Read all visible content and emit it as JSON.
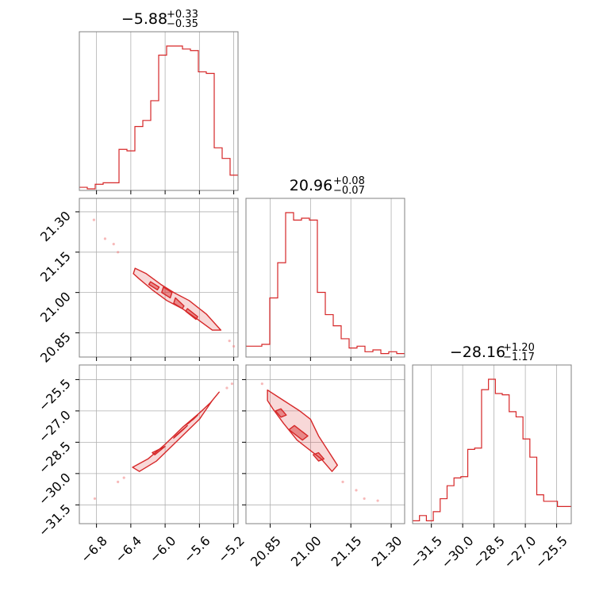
{
  "chart_data": {
    "type": "corner",
    "colors": {
      "line": "#d62728",
      "fill": "#f4c2c2",
      "grid": "#b0b0b0",
      "frame": "#808080"
    },
    "params": [
      {
        "name": "p0",
        "range": [
          -7.0,
          -5.15
        ],
        "ticks": [
          -6.8,
          -6.4,
          -6.0,
          -5.6,
          -5.2
        ],
        "tick_labels": [
          "−6.8",
          "−6.4",
          "−6.0",
          "−5.6",
          "−5.2"
        ],
        "title": {
          "median": "−5.88",
          "plus": "+0.33",
          "minus": "−0.35"
        }
      },
      {
        "name": "p1",
        "range": [
          20.76,
          21.35
        ],
        "ticks": [
          20.85,
          21.0,
          21.15,
          21.3
        ],
        "tick_labels": [
          "20.85",
          "21.00",
          "21.15",
          "21.30"
        ],
        "title": {
          "median": "20.96",
          "plus": "+0.08",
          "minus": "−0.07"
        }
      },
      {
        "name": "p2",
        "range": [
          -32.4,
          -24.8
        ],
        "ticks": [
          -31.5,
          -30.0,
          -28.5,
          -27.0,
          -25.5
        ],
        "tick_labels": [
          "−31.5",
          "−30.0",
          "−28.5",
          "−27.0",
          "−25.5"
        ],
        "title": {
          "median": "−28.16",
          "plus": "+1.20",
          "minus": "−1.17"
        }
      }
    ],
    "histograms": [
      {
        "param": 0,
        "counts": [
          1,
          0,
          3,
          4,
          4,
          26,
          25,
          41,
          45,
          58,
          88,
          94,
          94,
          92,
          91,
          77,
          76,
          27,
          20,
          9
        ]
      },
      {
        "param": 1,
        "counts": [
          5,
          5,
          6,
          31,
          50,
          77,
          73,
          74,
          73,
          34,
          22,
          16,
          9,
          4,
          5,
          2,
          3,
          1,
          2,
          1
        ]
      },
      {
        "param": 2,
        "counts": [
          1,
          5,
          1,
          8,
          18,
          28,
          34,
          35,
          56,
          57,
          102,
          110,
          99,
          98,
          85,
          81,
          64,
          50,
          21,
          16,
          16,
          12,
          12
        ]
      }
    ],
    "pairs": [
      {
        "x_param": 0,
        "y_param": 1,
        "outer": [
          [
            -6.35,
            21.09
          ],
          [
            -6.22,
            21.07
          ],
          [
            -6.05,
            21.03
          ],
          [
            -5.9,
            21.0
          ],
          [
            -5.72,
            20.97
          ],
          [
            -5.52,
            20.92
          ],
          [
            -5.35,
            20.86
          ],
          [
            -5.45,
            20.86
          ],
          [
            -5.62,
            20.9
          ],
          [
            -5.8,
            20.94
          ],
          [
            -5.98,
            20.97
          ],
          [
            -6.15,
            21.01
          ],
          [
            -6.3,
            21.05
          ],
          [
            -6.37,
            21.07
          ]
        ],
        "inner": [
          [
            [
              -6.02,
              21.02
            ],
            [
              -5.92,
              21.0
            ],
            [
              -5.94,
              20.98
            ],
            [
              -6.04,
              21.0
            ]
          ],
          [
            [
              -5.88,
              20.98
            ],
            [
              -5.78,
              20.95
            ],
            [
              -5.8,
              20.94
            ],
            [
              -5.9,
              20.96
            ]
          ],
          [
            [
              -5.74,
              20.94
            ],
            [
              -5.62,
              20.91
            ],
            [
              -5.64,
              20.9
            ],
            [
              -5.76,
              20.93
            ]
          ],
          [
            [
              -6.17,
              21.04
            ],
            [
              -6.07,
              21.02
            ],
            [
              -6.09,
              21.01
            ],
            [
              -6.19,
              21.03
            ]
          ]
        ],
        "outliers": [
          [
            -6.83,
            21.27
          ],
          [
            -6.7,
            21.2
          ],
          [
            -6.6,
            21.18
          ],
          [
            -6.55,
            21.15
          ],
          [
            -5.25,
            20.82
          ],
          [
            -5.2,
            20.8
          ]
        ]
      },
      {
        "x_param": 0,
        "y_param": 2,
        "outer": [
          [
            -6.3,
            -29.9
          ],
          [
            -6.1,
            -29.4
          ],
          [
            -5.85,
            -28.4
          ],
          [
            -5.6,
            -27.4
          ],
          [
            -5.45,
            -26.5
          ],
          [
            -5.37,
            -26.1
          ],
          [
            -5.47,
            -26.6
          ],
          [
            -5.6,
            -27.1
          ],
          [
            -5.8,
            -27.8
          ],
          [
            -6.0,
            -28.6
          ],
          [
            -6.2,
            -29.3
          ],
          [
            -6.38,
            -29.7
          ]
        ],
        "inner": [
          [
            [
              -6.12,
              -29.1
            ],
            [
              -6.0,
              -28.7
            ],
            [
              -6.05,
              -28.8
            ],
            [
              -6.15,
              -29.0
            ]
          ],
          [
            [
              -5.88,
              -28.2
            ],
            [
              -5.74,
              -27.7
            ],
            [
              -5.79,
              -27.9
            ],
            [
              -5.9,
              -28.3
            ]
          ],
          [
            [
              -5.73,
              -27.6
            ],
            [
              -5.62,
              -27.2
            ],
            [
              -5.67,
              -27.4
            ],
            [
              -5.77,
              -27.7
            ]
          ]
        ],
        "outliers": [
          [
            -6.82,
            -31.2
          ],
          [
            -6.55,
            -30.4
          ],
          [
            -6.48,
            -30.2
          ],
          [
            -5.28,
            -25.9
          ],
          [
            -5.22,
            -25.7
          ]
        ]
      },
      {
        "x_param": 1,
        "y_param": 2,
        "outer": [
          [
            20.84,
            -26.0
          ],
          [
            20.9,
            -26.5
          ],
          [
            20.96,
            -27.0
          ],
          [
            21.0,
            -27.4
          ],
          [
            21.03,
            -28.2
          ],
          [
            21.07,
            -29.0
          ],
          [
            21.1,
            -29.6
          ],
          [
            21.08,
            -29.9
          ],
          [
            21.04,
            -29.3
          ],
          [
            21.0,
            -28.9
          ],
          [
            20.95,
            -28.4
          ],
          [
            20.9,
            -27.6
          ],
          [
            20.86,
            -26.9
          ],
          [
            20.84,
            -26.5
          ]
        ],
        "inner": [
          [
            [
              20.94,
              -27.7
            ],
            [
              20.99,
              -28.2
            ],
            [
              20.97,
              -28.4
            ],
            [
              20.92,
              -27.9
            ]
          ],
          [
            [
              20.89,
              -26.9
            ],
            [
              20.91,
              -27.2
            ],
            [
              20.89,
              -27.3
            ],
            [
              20.87,
              -27.0
            ]
          ],
          [
            [
              21.03,
              -29.0
            ],
            [
              21.05,
              -29.3
            ],
            [
              21.03,
              -29.4
            ],
            [
              21.01,
              -29.1
            ]
          ]
        ],
        "outliers": [
          [
            20.82,
            -25.7
          ],
          [
            21.12,
            -30.4
          ],
          [
            21.17,
            -30.8
          ],
          [
            21.2,
            -31.2
          ],
          [
            21.25,
            -31.3
          ]
        ]
      }
    ]
  }
}
